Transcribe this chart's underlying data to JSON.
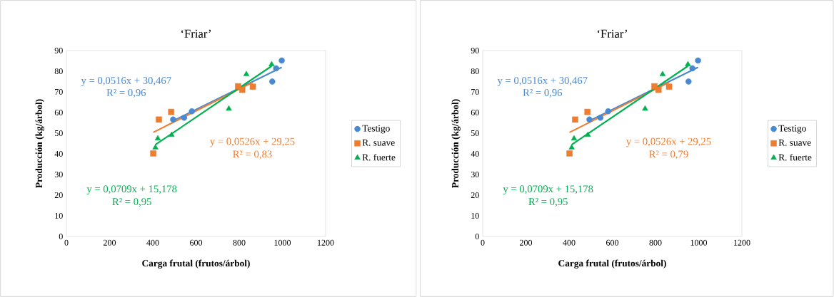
{
  "chart_data": [
    {
      "type": "scatter",
      "title": "‘Friar’",
      "xlabel": "Carga frutal (frutos/árbol)",
      "ylabel": "Producción (kg/árbol)",
      "xlim": [
        0,
        1200
      ],
      "ylim": [
        0,
        90
      ],
      "xticks": [
        0,
        200,
        400,
        600,
        800,
        1000,
        1200
      ],
      "yticks": [
        0,
        10,
        20,
        30,
        40,
        50,
        60,
        70,
        80,
        90
      ],
      "legend": "right",
      "series": [
        {
          "name": "Testigo",
          "marker": "circle",
          "color": "#4a89d1",
          "x": [
            494,
            545,
            581,
            953,
            971,
            997
          ],
          "values": [
            56.6,
            57.5,
            60.6,
            75.0,
            81.4,
            85.2
          ]
        },
        {
          "name": "R. suave",
          "marker": "square",
          "color": "#ed7d31",
          "x": [
            402,
            428,
            485,
            795,
            814,
            863
          ],
          "values": [
            40.2,
            56.6,
            60.3,
            72.7,
            71.0,
            72.5
          ]
        },
        {
          "name": "R. fuerte",
          "marker": "triangle",
          "color": "#00b050",
          "x": [
            412,
            423,
            487,
            752,
            833,
            950
          ],
          "values": [
            43.0,
            47.4,
            49.1,
            61.8,
            78.5,
            83.3
          ]
        },
        {
          "type": "line",
          "marker": "none",
          "color": "#4a89d1",
          "x": [
            494,
            997
          ],
          "values": [
            56.0,
            81.9
          ]
        },
        {
          "type": "line",
          "marker": "none",
          "color": "#ed7d31",
          "x": [
            402,
            863
          ],
          "values": [
            50.4,
            74.6
          ]
        },
        {
          "type": "line",
          "marker": "none",
          "color": "#00b050",
          "x": [
            412,
            950
          ],
          "values": [
            44.4,
            82.5
          ]
        }
      ],
      "annotations": [
        "y = 0,0516x + 30,467",
        "R² = 0,96",
        "y = 0,0526x + 29,25",
        "R² = 0,83",
        "y = 0,0709x + 15,178",
        "R² = 0,95"
      ]
    },
    {
      "type": "scatter",
      "title": "‘Friar’",
      "xlabel": "Carga frutal (frutos/árbol)",
      "ylabel": "Producción (kg/árbol)",
      "xlim": [
        0,
        1200
      ],
      "ylim": [
        0,
        90
      ],
      "xticks": [
        0,
        200,
        400,
        600,
        800,
        1000,
        1200
      ],
      "yticks": [
        0,
        10,
        20,
        30,
        40,
        50,
        60,
        70,
        80,
        90
      ],
      "legend": "right",
      "series": [
        {
          "name": "Testigo",
          "marker": "circle",
          "color": "#4a89d1",
          "x": [
            494,
            545,
            581,
            953,
            971,
            997
          ],
          "values": [
            56.6,
            57.5,
            60.6,
            75.0,
            81.4,
            85.2
          ]
        },
        {
          "name": "R. suave",
          "marker": "square",
          "color": "#ed7d31",
          "x": [
            402,
            428,
            485,
            795,
            814,
            863
          ],
          "values": [
            40.2,
            56.6,
            60.3,
            72.7,
            71.0,
            72.5
          ]
        },
        {
          "name": "R. fuerte",
          "marker": "triangle",
          "color": "#00b050",
          "x": [
            412,
            423,
            487,
            752,
            833,
            950
          ],
          "values": [
            43.0,
            47.4,
            49.1,
            61.8,
            78.5,
            83.3
          ]
        },
        {
          "type": "line",
          "marker": "none",
          "color": "#4a89d1",
          "x": [
            494,
            997
          ],
          "values": [
            56.0,
            81.9
          ]
        },
        {
          "type": "line",
          "marker": "none",
          "color": "#ed7d31",
          "x": [
            402,
            863
          ],
          "values": [
            50.4,
            74.6
          ]
        },
        {
          "type": "line",
          "marker": "none",
          "color": "#00b050",
          "x": [
            412,
            950
          ],
          "values": [
            44.4,
            82.5
          ]
        }
      ],
      "annotations": [
        "y = 0,0516x + 30,467",
        "R² = 0,96",
        "y = 0,0526x + 29,25",
        "R² = 0,79",
        "y = 0,0709x + 15,178",
        "R² = 0,95"
      ]
    }
  ]
}
